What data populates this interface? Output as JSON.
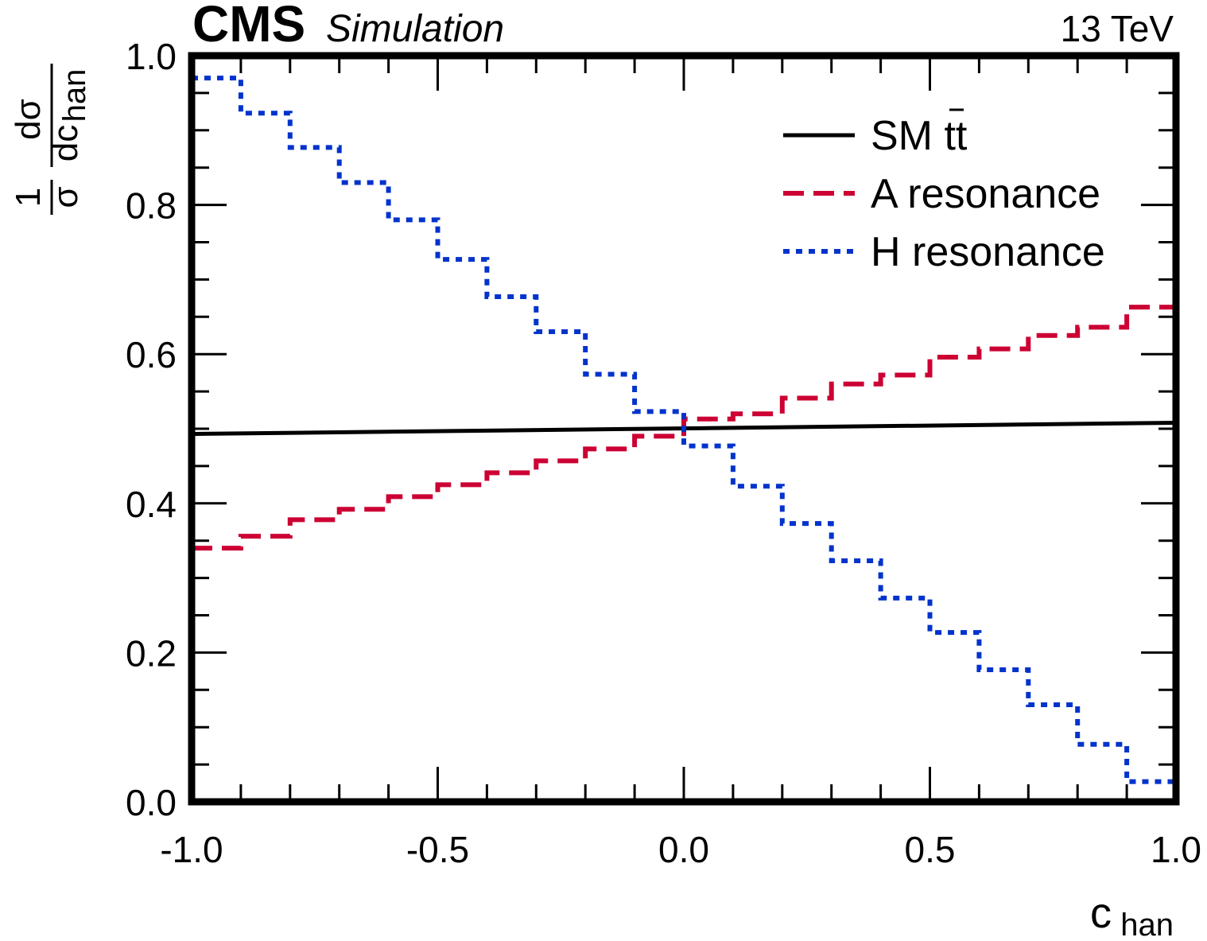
{
  "header": {
    "experiment": "CMS",
    "qualifier": "Simulation",
    "energy": "13 TeV"
  },
  "chart_data": {
    "type": "line",
    "xlabel": "c_han",
    "xlabel_main": "c",
    "xlabel_sub": "han",
    "ylabel": "(1/σ) dσ/dc_han",
    "ylabel_parts": {
      "one": "1",
      "sigma": "σ",
      "dsigma": "dσ",
      "dc": "dc",
      "sub": "han"
    },
    "xlim": [
      -1.0,
      1.0
    ],
    "ylim": [
      0.0,
      1.0
    ],
    "x_ticks": [
      "-1.0",
      "-0.5",
      "0.0",
      "0.5",
      "1.0"
    ],
    "y_ticks": [
      "0.0",
      "0.2",
      "0.4",
      "0.6",
      "0.8",
      "1.0"
    ],
    "x_tick_values": [
      -1.0,
      -0.5,
      0.0,
      0.5,
      1.0
    ],
    "y_tick_values": [
      0.0,
      0.2,
      0.4,
      0.6,
      0.8,
      1.0
    ],
    "legend_position": "top-right",
    "bin_edges": [
      -1.0,
      -0.9,
      -0.8,
      -0.7,
      -0.6,
      -0.5,
      -0.4,
      -0.3,
      -0.2,
      -0.1,
      0.0,
      0.1,
      0.2,
      0.3,
      0.4,
      0.5,
      0.6,
      0.7,
      0.8,
      0.9,
      1.0
    ],
    "series": [
      {
        "name": "SM tt̄",
        "label_main": "SM tt",
        "label_bar": "̄",
        "style": "solid",
        "color": "#000000",
        "x": [
          -1.0,
          1.0
        ],
        "y": [
          0.493,
          0.508
        ]
      },
      {
        "name": "A resonance",
        "style": "dashed",
        "color": "#cc0033",
        "values": [
          0.34,
          0.356,
          0.378,
          0.392,
          0.409,
          0.425,
          0.441,
          0.457,
          0.473,
          0.49,
          0.513,
          0.52,
          0.541,
          0.56,
          0.572,
          0.596,
          0.607,
          0.625,
          0.636,
          0.663
        ]
      },
      {
        "name": "H resonance",
        "style": "dotted",
        "color": "#0033cc",
        "values": [
          0.97,
          0.923,
          0.877,
          0.83,
          0.78,
          0.727,
          0.677,
          0.63,
          0.573,
          0.523,
          0.477,
          0.423,
          0.373,
          0.323,
          0.273,
          0.227,
          0.177,
          0.13,
          0.077,
          0.027
        ]
      }
    ]
  }
}
